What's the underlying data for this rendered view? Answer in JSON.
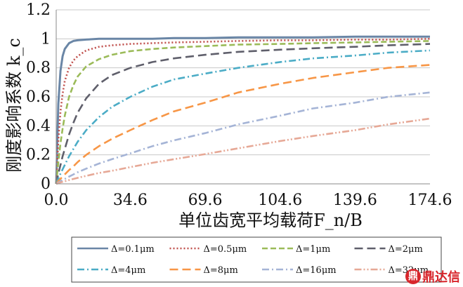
{
  "chart_data": {
    "type": "line",
    "title": "",
    "xlabel": "单位齿宽平均载荷F_n/B",
    "ylabel": "刚度影响系数 k_c",
    "xlim": [
      0,
      174.6
    ],
    "ylim": [
      0,
      1.2
    ],
    "x_ticks": [
      "0.0",
      "34.6",
      "69.6",
      "104.6",
      "139.6",
      "174.6"
    ],
    "y_ticks": [
      "0",
      "0.2",
      "0.4",
      "0.6",
      "0.8",
      "1",
      "1.2"
    ],
    "grid": "horizontal",
    "legend_position": "bottom",
    "x": [
      0,
      1,
      2,
      3,
      4,
      6,
      8,
      10,
      14,
      20,
      26,
      34.6,
      45,
      55,
      69.6,
      85,
      104.6,
      120,
      139.6,
      155,
      174.6
    ],
    "series": [
      {
        "name": "Δ=0.1μm",
        "color": "#6a86a6",
        "dash": "solid",
        "values": [
          0,
          0.55,
          0.78,
          0.88,
          0.93,
          0.97,
          0.985,
          0.99,
          0.995,
          1.0,
          1.0,
          1.0,
          1.0,
          1.005,
          1.005,
          1.01,
          1.01,
          1.01,
          1.015,
          1.015,
          1.015
        ]
      },
      {
        "name": "Δ=0.5μm",
        "color": "#c0504d",
        "dash": "dot",
        "values": [
          0,
          0.3,
          0.5,
          0.62,
          0.71,
          0.8,
          0.85,
          0.88,
          0.92,
          0.945,
          0.955,
          0.965,
          0.97,
          0.975,
          0.98,
          0.985,
          0.99,
          0.99,
          0.995,
          0.995,
          1.0
        ]
      },
      {
        "name": "Δ=1μm",
        "color": "#9bbb59",
        "dash": "dash",
        "values": [
          0,
          0.15,
          0.28,
          0.38,
          0.47,
          0.6,
          0.68,
          0.74,
          0.81,
          0.86,
          0.89,
          0.915,
          0.93,
          0.94,
          0.95,
          0.96,
          0.965,
          0.97,
          0.975,
          0.98,
          0.985
        ]
      },
      {
        "name": "Δ=2μm",
        "color": "#5f5f6b",
        "dash": "longdash",
        "values": [
          0,
          0.07,
          0.13,
          0.19,
          0.24,
          0.34,
          0.42,
          0.49,
          0.59,
          0.69,
          0.75,
          0.8,
          0.84,
          0.865,
          0.89,
          0.91,
          0.925,
          0.935,
          0.945,
          0.955,
          0.965
        ]
      },
      {
        "name": "Δ=4μm",
        "color": "#4bacc6",
        "dash": "dashdot",
        "values": [
          0,
          0.035,
          0.07,
          0.1,
          0.13,
          0.19,
          0.24,
          0.29,
          0.37,
          0.46,
          0.53,
          0.6,
          0.67,
          0.72,
          0.76,
          0.8,
          0.84,
          0.865,
          0.885,
          0.905,
          0.92
        ]
      },
      {
        "name": "Δ=8μm",
        "color": "#f79646",
        "dash": "longdash",
        "values": [
          0,
          0.02,
          0.035,
          0.05,
          0.065,
          0.095,
          0.12,
          0.15,
          0.2,
          0.26,
          0.31,
          0.37,
          0.44,
          0.5,
          0.56,
          0.63,
          0.69,
          0.73,
          0.77,
          0.8,
          0.82
        ]
      },
      {
        "name": "Δ=16μm",
        "color": "#a5b4d6",
        "dash": "dashdot",
        "values": [
          0,
          0.01,
          0.018,
          0.026,
          0.034,
          0.05,
          0.065,
          0.08,
          0.105,
          0.14,
          0.17,
          0.21,
          0.26,
          0.3,
          0.35,
          0.41,
          0.47,
          0.52,
          0.56,
          0.6,
          0.63
        ]
      },
      {
        "name": "Δ=32μm",
        "color": "#e6a896",
        "dash": "dashdotdot",
        "values": [
          0,
          0.005,
          0.01,
          0.014,
          0.018,
          0.026,
          0.034,
          0.041,
          0.055,
          0.075,
          0.09,
          0.115,
          0.145,
          0.17,
          0.205,
          0.245,
          0.295,
          0.33,
          0.37,
          0.41,
          0.45
        ]
      }
    ]
  },
  "watermark": {
    "text": "鼎达信",
    "mark": "鼎"
  }
}
